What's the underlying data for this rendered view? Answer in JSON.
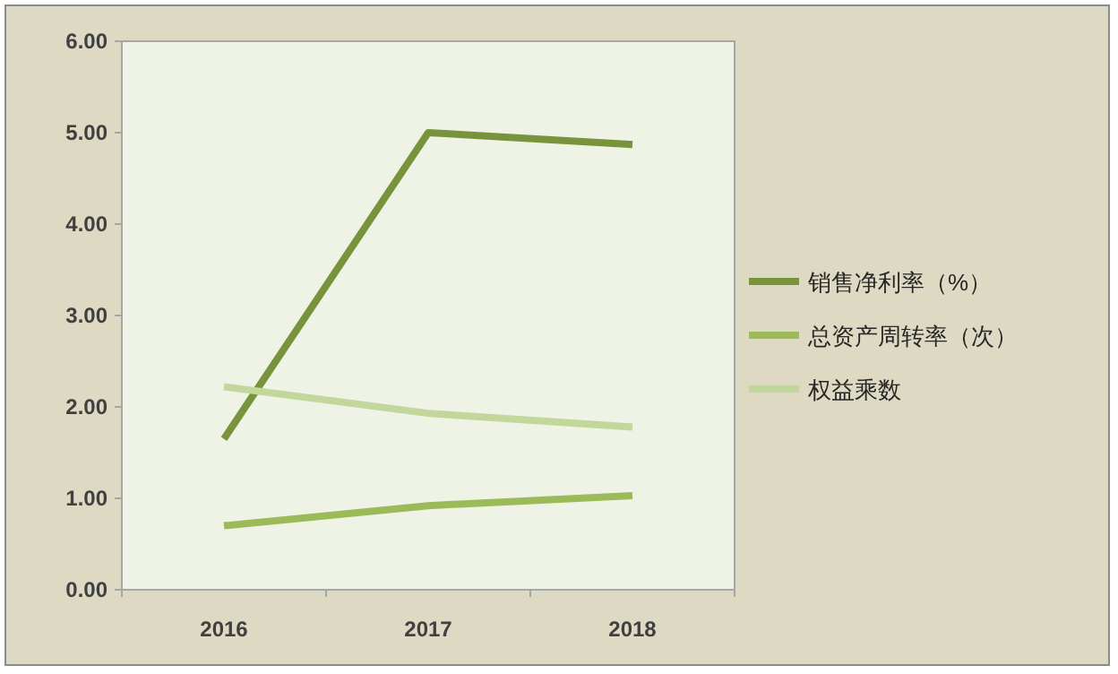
{
  "chart_data": {
    "type": "line",
    "categories": [
      "2016",
      "2017",
      "2018"
    ],
    "series": [
      {
        "name": "销售净利率（%）",
        "color": "#77933c",
        "values": [
          1.65,
          5.0,
          4.87
        ]
      },
      {
        "name": "总资产周转率（次）",
        "color": "#9bbb59",
        "values": [
          0.7,
          0.92,
          1.03
        ]
      },
      {
        "name": "权益乘数",
        "color": "#c3d69b",
        "values": [
          2.22,
          1.93,
          1.78
        ]
      }
    ],
    "ylim": [
      0,
      6
    ],
    "yticks": [
      {
        "value": 0,
        "label": "0.00"
      },
      {
        "value": 1,
        "label": "1.00"
      },
      {
        "value": 2,
        "label": "2.00"
      },
      {
        "value": 3,
        "label": "3.00"
      },
      {
        "value": 4,
        "label": "4.00"
      },
      {
        "value": 5,
        "label": "5.00"
      },
      {
        "value": 6,
        "label": "6.00"
      }
    ],
    "grid": false,
    "legend": "right",
    "marker": "none",
    "line_style": "solid"
  }
}
